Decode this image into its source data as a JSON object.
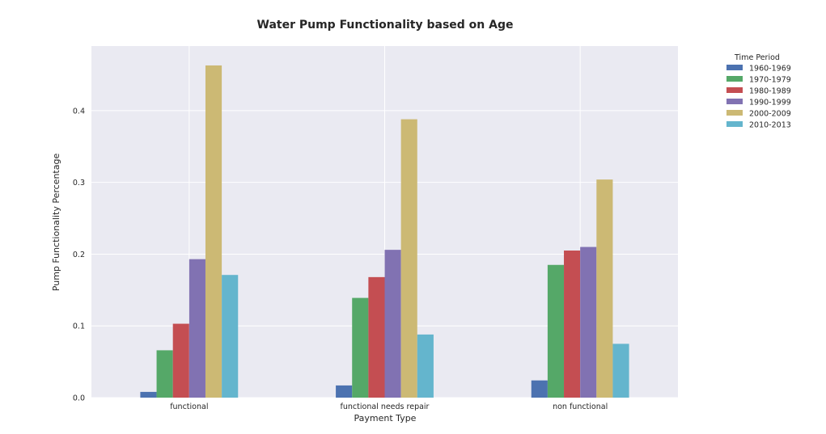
{
  "chart_data": {
    "type": "bar",
    "title": "Water Pump Functionality based on Age",
    "xlabel": "Payment Type",
    "ylabel": "Pump Functionality Percentage",
    "categories": [
      "functional",
      "functional needs repair",
      "non functional"
    ],
    "ylim": [
      0,
      0.49
    ],
    "yticks": [
      "0.0",
      "0.1",
      "0.2",
      "0.3",
      "0.4"
    ],
    "grid": true,
    "legend_title": "Time Period",
    "legend_position": "outside-top-right",
    "background": "#eaeaf2",
    "series": [
      {
        "name": "1960-1969",
        "color": "#4c72b0",
        "values": [
          0.008,
          0.017,
          0.024
        ]
      },
      {
        "name": "1970-1979",
        "color": "#55a868",
        "values": [
          0.066,
          0.139,
          0.185
        ]
      },
      {
        "name": "1980-1989",
        "color": "#c44e52",
        "values": [
          0.103,
          0.168,
          0.205
        ]
      },
      {
        "name": "1990-1999",
        "color": "#8172b2",
        "values": [
          0.193,
          0.206,
          0.21
        ]
      },
      {
        "name": "2000-2009",
        "color": "#ccb974",
        "values": [
          0.463,
          0.388,
          0.304
        ]
      },
      {
        "name": "2010-2013",
        "color": "#64b5cd",
        "values": [
          0.171,
          0.088,
          0.075
        ]
      }
    ]
  }
}
